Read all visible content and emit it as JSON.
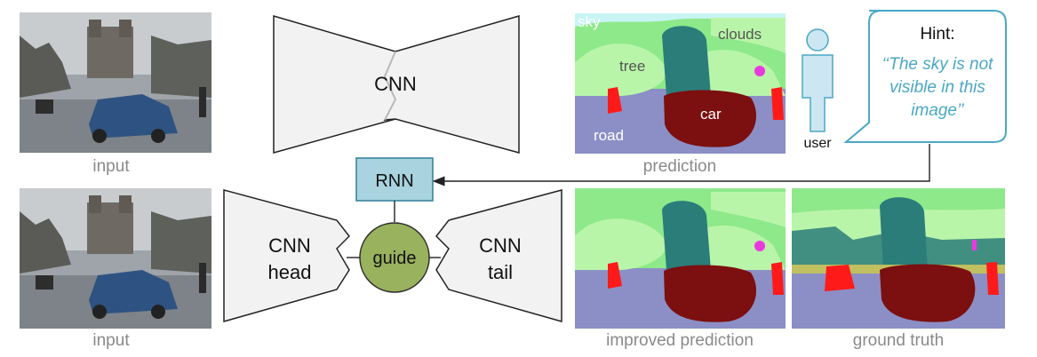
{
  "captions": {
    "input_top": "input",
    "input_bottom": "input",
    "prediction": "prediction",
    "improved_prediction": "improved prediction",
    "ground_truth": "ground truth",
    "user": "user"
  },
  "networks": {
    "cnn": "CNN",
    "rnn": "RNN",
    "cnn_head": [
      "CNN",
      "head"
    ],
    "guide": "guide",
    "cnn_tail": [
      "CNN",
      "tail"
    ]
  },
  "segmentation_labels": {
    "sky": "sky",
    "clouds": "clouds",
    "tree": "tree",
    "car": "car",
    "road": "road"
  },
  "hint": {
    "title": "Hint:",
    "lines": [
      "‘‘The sky is not",
      "visible in this",
      "image’’"
    ]
  },
  "colors": {
    "road": "#8b8fc6",
    "tree_light": "#b9f5a9",
    "tree_mid": "#8ee98a",
    "building": "#2b7d7a",
    "car": "#7c0f0f",
    "person": "#ff1a1a",
    "sky": "#c8f4f4",
    "sign": "#e83adf",
    "rnn_fill": "#a8d3df",
    "guide_fill": "#98b25d",
    "hint_border": "#4aa7c4",
    "user_fill": "#cde7f2"
  }
}
